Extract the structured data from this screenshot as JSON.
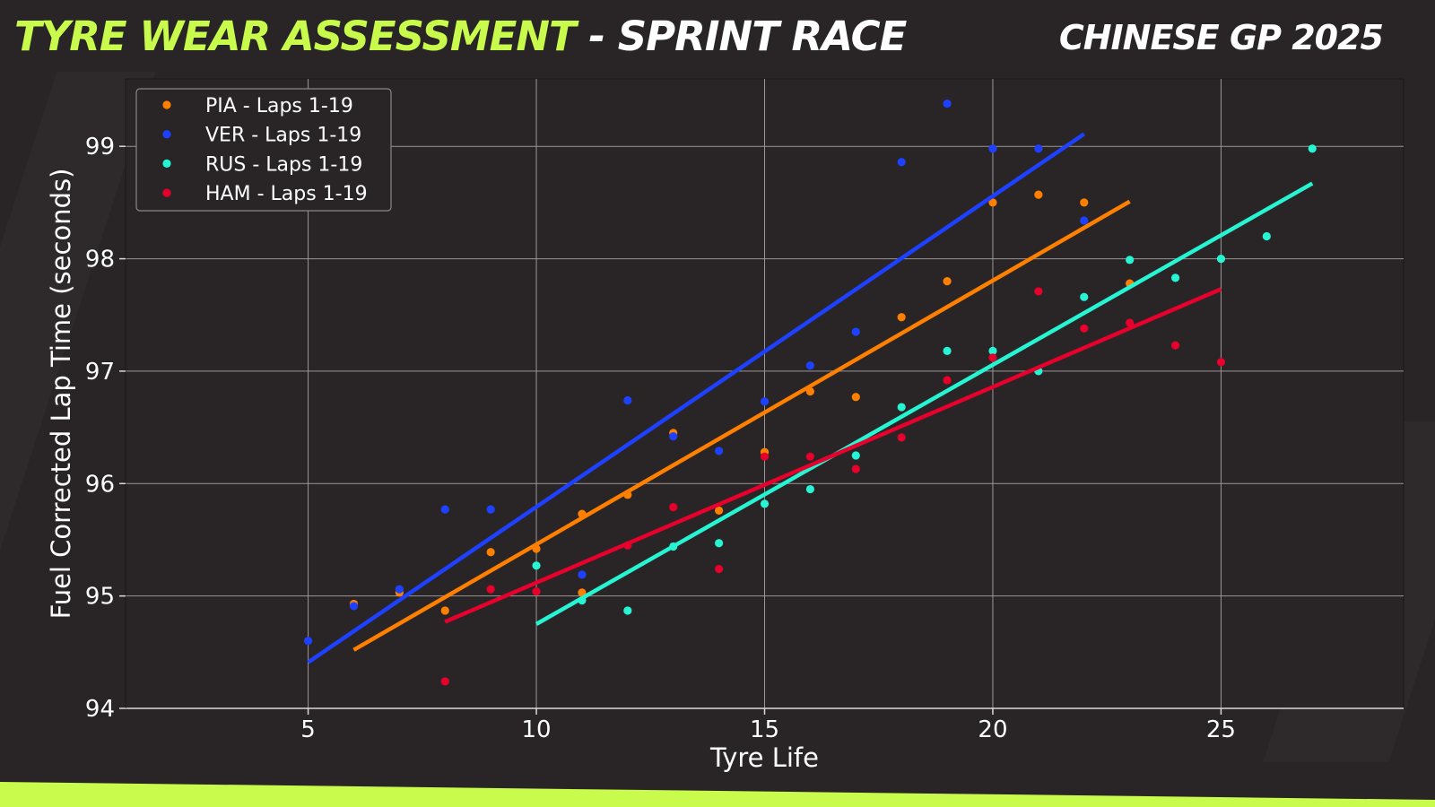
{
  "header": {
    "title_accent": "TYRE WEAR ASSESSMENT",
    "title_rest": " - SPRINT RACE",
    "event": "CHINESE GP 2025"
  },
  "colors": {
    "background": "#292526",
    "accent": "#c8fb4b",
    "PIA": "#ff8000",
    "VER": "#1e41ff",
    "RUS": "#27f4d2",
    "HAM": "#e8002d"
  },
  "chart_data": {
    "type": "scatter",
    "title": "",
    "xlabel": "Tyre Life",
    "ylabel": "Fuel Corrected Lap Time (seconds)",
    "xlim": [
      1,
      29
    ],
    "ylim": [
      94,
      99.6
    ],
    "xticks": [
      5,
      10,
      15,
      20,
      25
    ],
    "yticks": [
      94,
      95,
      96,
      97,
      98,
      99
    ],
    "grid": true,
    "legend_position": "top-left",
    "series": [
      {
        "name": "PIA - Laps 1-19",
        "color": "#ff8000",
        "points": [
          [
            6,
            94.93
          ],
          [
            7,
            95.03
          ],
          [
            8,
            94.87
          ],
          [
            9,
            95.39
          ],
          [
            10,
            95.42
          ],
          [
            11,
            95.03
          ],
          [
            11,
            95.73
          ],
          [
            12,
            95.9
          ],
          [
            13,
            96.45
          ],
          [
            14,
            95.76
          ],
          [
            15,
            96.28
          ],
          [
            16,
            96.82
          ],
          [
            17,
            96.77
          ],
          [
            18,
            97.48
          ],
          [
            19,
            97.8
          ],
          [
            20,
            98.5
          ],
          [
            21,
            98.57
          ],
          [
            22,
            98.5
          ],
          [
            23,
            97.78
          ]
        ],
        "trend": [
          [
            6,
            94.52
          ],
          [
            23,
            98.51
          ]
        ]
      },
      {
        "name": "VER - Laps 1-19",
        "color": "#1e41ff",
        "points": [
          [
            5,
            94.6
          ],
          [
            6,
            94.91
          ],
          [
            7,
            95.06
          ],
          [
            8,
            95.77
          ],
          [
            9,
            95.77
          ],
          [
            11,
            95.19
          ],
          [
            12,
            96.74
          ],
          [
            13,
            96.42
          ],
          [
            14,
            96.29
          ],
          [
            15,
            96.73
          ],
          [
            16,
            97.05
          ],
          [
            17,
            97.35
          ],
          [
            18,
            98.86
          ],
          [
            19,
            99.38
          ],
          [
            20,
            98.98
          ],
          [
            21,
            98.98
          ],
          [
            22,
            98.34
          ]
        ],
        "trend": [
          [
            5,
            94.41
          ],
          [
            22,
            99.11
          ]
        ]
      },
      {
        "name": "RUS - Laps 1-19",
        "color": "#27f4d2",
        "points": [
          [
            10,
            95.27
          ],
          [
            11,
            94.96
          ],
          [
            12,
            94.87
          ],
          [
            13,
            95.44
          ],
          [
            14,
            95.47
          ],
          [
            15,
            95.82
          ],
          [
            16,
            95.95
          ],
          [
            17,
            96.25
          ],
          [
            18,
            96.68
          ],
          [
            19,
            97.18
          ],
          [
            20,
            97.18
          ],
          [
            21,
            97.0
          ],
          [
            22,
            97.66
          ],
          [
            23,
            97.99
          ],
          [
            24,
            97.83
          ],
          [
            25,
            98.0
          ],
          [
            26,
            98.2
          ],
          [
            27,
            98.98
          ]
        ],
        "trend": [
          [
            10,
            94.75
          ],
          [
            27,
            98.67
          ]
        ]
      },
      {
        "name": "HAM - Laps 1-19",
        "color": "#e8002d",
        "points": [
          [
            8,
            94.24
          ],
          [
            9,
            95.06
          ],
          [
            10,
            95.04
          ],
          [
            12,
            95.45
          ],
          [
            13,
            95.79
          ],
          [
            14,
            95.24
          ],
          [
            15,
            96.24
          ],
          [
            16,
            96.24
          ],
          [
            17,
            96.13
          ],
          [
            18,
            96.41
          ],
          [
            19,
            96.92
          ],
          [
            20,
            97.12
          ],
          [
            21,
            97.71
          ],
          [
            22,
            97.38
          ],
          [
            23,
            97.43
          ],
          [
            24,
            97.23
          ],
          [
            25,
            97.08
          ]
        ],
        "trend": [
          [
            8,
            94.77
          ],
          [
            25,
            97.73
          ]
        ]
      }
    ]
  }
}
